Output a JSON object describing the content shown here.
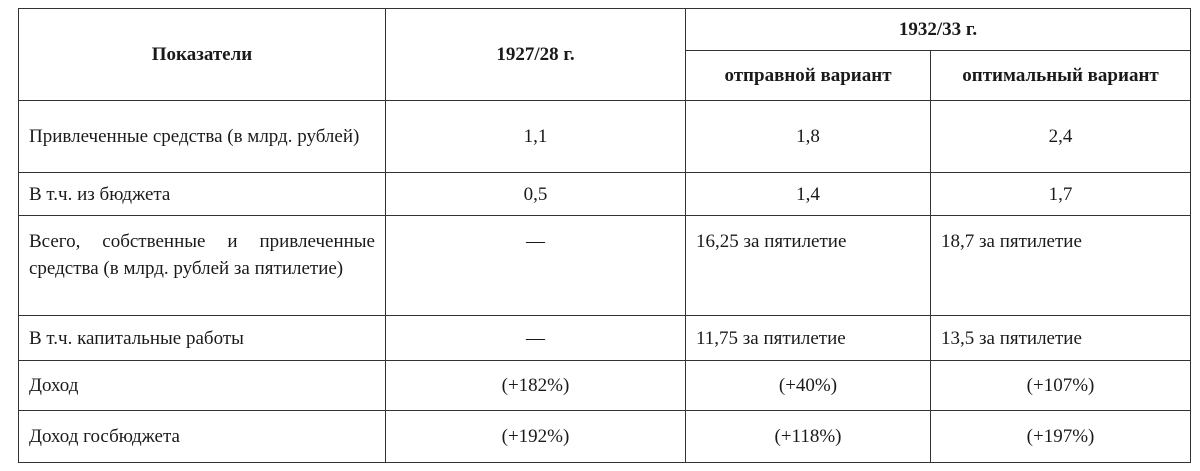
{
  "table": {
    "header": {
      "indicator": "Показатели",
      "year1": "1927/28 г.",
      "year2": "1932/33 г.",
      "variant1": "отправной вариант",
      "variant2": "оптимальный вариант"
    },
    "rows": [
      [
        "Привлеченные средства (в млрд. рублей)",
        "1,1",
        "1,8",
        "2,4"
      ],
      [
        "В т.ч. из бюджета",
        "0,5",
        "1,4",
        "1,7"
      ],
      [
        "Всего, собственные и привлеченные средства (в млрд. рублей за пятилетие)",
        "—",
        "16,25 за пятилетие",
        "18,7 за пятилетие"
      ],
      [
        "В т.ч. капитальные работы",
        "—",
        "11,75 за пятилетие",
        "13,5 за пятилетие"
      ],
      [
        "Доход",
        "(+182%)",
        "(+40%)",
        "(+107%)"
      ],
      [
        "Доход госбюджета",
        "(+192%)",
        "(+118%)",
        "(+197%)"
      ]
    ]
  }
}
